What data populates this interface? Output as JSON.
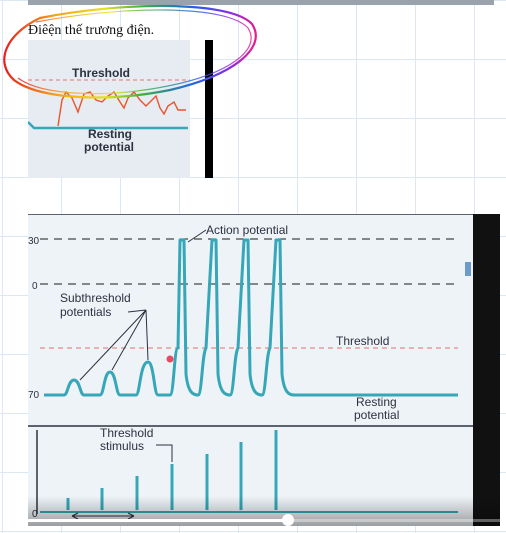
{
  "note": {
    "text": "Điêện thế trương điện."
  },
  "thumbnail": {
    "threshold_label": "Threshold",
    "resting_label_line1": "Resting",
    "resting_label_line2": "potential"
  },
  "video": {
    "axis_labels": [
      "30",
      "0",
      "70",
      "0"
    ],
    "action_potential_label": "Action potential",
    "subthreshold_label_line1": "Subthreshold",
    "subthreshold_label_line2": "potentials",
    "threshold_label": "Threshold",
    "resting_label_line1": "Resting",
    "resting_label_line2": "potential",
    "stimulus_label_line1": "Threshold",
    "stimulus_label_line2": "stimulus",
    "playback_progress": 0.55
  },
  "colors": {
    "trace": "#35a7b8",
    "threshold_line": "#e58a8a",
    "dashed_line": "#444444",
    "thumb_trace": "#e8542f"
  }
}
